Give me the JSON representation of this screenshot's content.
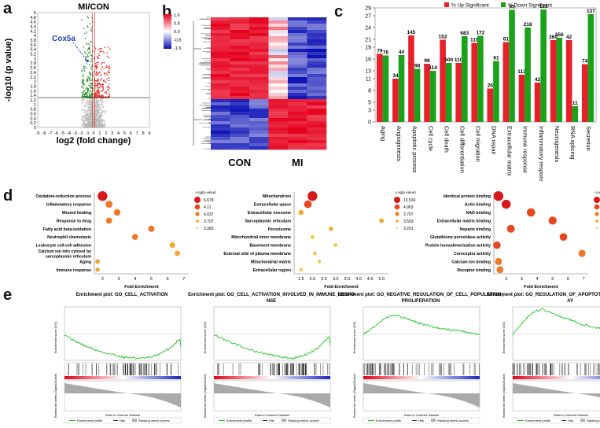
{
  "panel_labels": {
    "a": "a",
    "b": "b",
    "c": "c",
    "d": "d",
    "e": "e"
  },
  "chart_data": [
    {
      "id": "a",
      "type": "scatter",
      "title": "MI/CON",
      "xlabel": "log2 (fold change)",
      "ylabel": "-log10 (p value)",
      "x_ticks": [
        "-9",
        "-8",
        "-7",
        "-6",
        "-5",
        "-4",
        "-3",
        "-2",
        "-1",
        "0",
        "1",
        "2",
        "3",
        "4",
        "5",
        "6",
        "7",
        "8",
        "9"
      ],
      "x_tick_values": [
        -9,
        -8,
        -7,
        -6,
        -5,
        -4,
        -3,
        -2,
        -1,
        0,
        1,
        2,
        3,
        4,
        5,
        6,
        7,
        8,
        9
      ],
      "y_ticks": [
        "0",
        "0.2",
        "0.4",
        "0.6",
        "0.8",
        "1",
        "1.2",
        "1.4",
        "1.6",
        "1.8",
        "2",
        "2.2",
        "2.4",
        "2.6",
        "2.8",
        "3",
        "3.2",
        "3.4",
        "3.6",
        "3.8",
        "4",
        "4.2",
        "4.4",
        "4.6",
        "4.8",
        "5"
      ],
      "xlim": [
        -9,
        9
      ],
      "ylim": [
        0,
        5
      ],
      "threshold_y": 1.3,
      "annotation": "Cox5a",
      "annotation_point": {
        "x": -1.0,
        "y": 2.9
      },
      "colors": {
        "up": "#e02020",
        "down": "#1e8a1e",
        "ns": "#b8b8b8"
      }
    },
    {
      "id": "b",
      "type": "heatmap",
      "groups": [
        "CON",
        "MI"
      ],
      "legend_values": [
        "1.6",
        "0.8",
        "0.0",
        "-0.8",
        "-1.6"
      ],
      "colors": {
        "high": "#e8001c",
        "mid": "#ffffff",
        "low": "#0a10b4"
      }
    },
    {
      "id": "c",
      "type": "bar",
      "legend": [
        "% Up Significant",
        "% Down Significant"
      ],
      "categories": [
        "Aging",
        "Angiogenesis",
        "Apoptotic process",
        "Cell cycle",
        "Cell death",
        "Cell differentiation",
        "Cell migration",
        "DNA repair",
        "Extracellular matrix",
        "Immune response",
        "Inflammatory response",
        "Neurogenesis",
        "RNA splicing",
        "Secretion"
      ],
      "series": [
        {
          "name": "% Up Significant",
          "values": [
            17.3,
            11.0,
            22.0,
            14.8,
            20.9,
            15.0,
            20.1,
            8.5,
            20.3,
            12.0,
            10.0,
            20.8,
            20.8,
            14.7
          ],
          "labels": [
            "79",
            "34",
            "145",
            "98",
            "152",
            "110",
            "115",
            "26",
            "61",
            "113",
            "42",
            "260",
            "42",
            "74"
          ],
          "color": "#e8202a"
        },
        {
          "name": "% Down Significant",
          "values": [
            16.9,
            17.0,
            13.5,
            13.0,
            15.0,
            21.8,
            21.9,
            15.5,
            28.5,
            24.0,
            28.6,
            21.4,
            4.0,
            27.4
          ],
          "labels": [
            "76",
            "44",
            "98",
            "114",
            "500",
            "683",
            "172",
            "61",
            "93",
            "218",
            "121",
            "356",
            "11",
            "137"
          ],
          "color": "#1aa31a"
        }
      ],
      "y_ticks": [
        "0",
        "3",
        "5",
        "8",
        "11",
        "13",
        "16",
        "19",
        "21",
        "24",
        "27",
        "29"
      ],
      "ylim": [
        0,
        29
      ]
    },
    {
      "id": "d1",
      "type": "scatter",
      "xlabel": "Fold Enrichment",
      "legend_title": "-Log(p-value)",
      "legend_values": [
        "6.679",
        "4.11",
        "4.037",
        "3.707",
        "3.383"
      ],
      "categories": [
        "Oxidation-reduction process",
        "Inflammatory response",
        "Wound healing",
        "Response to drug",
        "Fatty acid beta-oxidation",
        "Neutrophil chemotaxis",
        "Leukocyte cell-cell adhesion",
        "Calcium ion into cytosol by sarcoplasmic reticulum",
        "Aging",
        "Immune response"
      ],
      "x": [
        2.0,
        2.4,
        2.9,
        2.4,
        5.0,
        4.0,
        6.3,
        6.6,
        1.7,
        1.7
      ],
      "size": [
        6.7,
        4.5,
        4.1,
        3.6,
        3.9,
        3.6,
        3.3,
        3.2,
        2.5,
        2.3
      ],
      "x_ticks": [
        "2",
        "3",
        "4",
        "5",
        "6",
        "7"
      ],
      "xlim": [
        1.5,
        7.3
      ]
    },
    {
      "id": "d2",
      "type": "scatter",
      "xlabel": "Fold Enrichment",
      "legend_title": "-Log(p-value)",
      "legend_values": [
        "13.534",
        "4.963",
        "3.707",
        "3.503",
        "3.201"
      ],
      "categories": [
        "Mitochondrion",
        "Extracellular space",
        "Extracellular exosome",
        "Sarcoplasmic reticulum",
        "Peroxisome",
        "Mitochondrial inner membrane",
        "Basement membrane",
        "External side of plasma membrane",
        "Mitochondrial matrix",
        "Extracellular region"
      ],
      "x": [
        2.0,
        1.8,
        1.5,
        5.0,
        2.8,
        2.0,
        3.0,
        2.1,
        2.3,
        1.5
      ],
      "size": [
        13.5,
        10.0,
        6.0,
        5.0,
        4.5,
        4.0,
        3.7,
        3.6,
        3.3,
        3.2
      ],
      "x_ticks": [
        "1.5",
        "2.0",
        "2.5",
        "3.0",
        "3.5",
        "4.0",
        "4.5",
        "5.0"
      ],
      "xlim": [
        1.2,
        5.3
      ]
    },
    {
      "id": "d3",
      "type": "scatter",
      "xlabel": "Fold Enrichment",
      "legend_title": "-Log(p-value)",
      "legend_values": [
        "3.463",
        "2.671",
        "2.442",
        "2.383",
        "2.32"
      ],
      "categories": [
        "Identical protein binding",
        "Actin binding",
        "NAD binding",
        "Extracellular matrix binding",
        "Heparin binding",
        "Glutathione peroxidase activity",
        "Protein homodimerization activity",
        "Coreceptor activity",
        "Calcium ion binding",
        "Receptor binding"
      ],
      "x": [
        1.5,
        2.0,
        3.6,
        5.0,
        2.3,
        5.7,
        1.4,
        6.9,
        1.5,
        1.6
      ],
      "size": [
        3.5,
        3.2,
        2.9,
        2.8,
        2.7,
        2.6,
        2.5,
        2.4,
        2.35,
        2.3
      ],
      "x_ticks": [
        "2",
        "3",
        "4",
        "5",
        "6",
        "7"
      ],
      "xlim": [
        1.2,
        7.3
      ]
    },
    {
      "id": "e1",
      "type": "line",
      "title": "Enrichment plot: GO_CELL_ACTIVATION",
      "ylabel": "Enrichment score (ES)",
      "xlabel": "Rank in Ordered Dataset",
      "x": [
        0,
        1000,
        2000,
        3000,
        4000,
        5000,
        6000,
        7000,
        8000,
        9000,
        10000,
        11000,
        12000
      ],
      "y": [
        0.0,
        -0.1,
        -0.17,
        -0.23,
        -0.28,
        -0.31,
        -0.35,
        -0.36,
        -0.37,
        -0.35,
        -0.29,
        -0.2,
        -0.05
      ],
      "legend": [
        "Enrichment profile",
        "Hits",
        "Ranking metric scores"
      ]
    },
    {
      "id": "e2",
      "type": "line",
      "title": "Enrichment plot: GO_CELL_ACTIVATION_INVOLVED_IN_IMMUNE_RESPO NSE",
      "ylabel": "Enrichment score (ES)",
      "xlabel": "Rank in Ordered Dataset",
      "x": [
        0,
        1000,
        2000,
        3000,
        4000,
        5000,
        6000,
        7000,
        8000,
        9000,
        10000,
        11000,
        12000
      ],
      "y": [
        0.0,
        -0.08,
        -0.14,
        -0.2,
        -0.25,
        -0.29,
        -0.32,
        -0.35,
        -0.37,
        -0.34,
        -0.28,
        -0.18,
        -0.02
      ],
      "legend": [
        "Enrichment profile",
        "Hits",
        "Ranking metric scores"
      ]
    },
    {
      "id": "e3",
      "type": "line",
      "title": "Enrichment plot: GO_NEGATIVE_REGULATION_OF_CELL_POPULATION_ PROLIFERATION",
      "ylabel": "Enrichment score (ES)",
      "xlabel": "Rank in Ordered Dataset",
      "x": [
        0,
        1000,
        2000,
        3000,
        4000,
        5000,
        6000,
        7000,
        8000,
        9000,
        10000,
        11000,
        12000
      ],
      "y": [
        0.0,
        0.1,
        0.22,
        0.3,
        0.26,
        0.21,
        0.16,
        0.12,
        0.09,
        0.06,
        0.05,
        0.02,
        0.0
      ],
      "legend": [
        "Enrichment profile",
        "Hits",
        "Ranking metric scores"
      ]
    },
    {
      "id": "e4",
      "type": "line",
      "title": "Enrichment plot: GO_REGULATION_OF_APOPTOTIC_SIGNALING_PATHW AY",
      "ylabel": "Enrichment score (ES)",
      "xlabel": "Rank in Ordered Dataset",
      "x": [
        0,
        1000,
        2000,
        3000,
        4000,
        5000,
        6000,
        7000,
        8000,
        9000,
        10000,
        11000,
        12000
      ],
      "y": [
        0.0,
        0.18,
        0.34,
        0.38,
        0.33,
        0.27,
        0.22,
        0.16,
        0.12,
        0.09,
        0.06,
        0.03,
        0.0
      ],
      "legend": [
        "Enrichment profile",
        "Hits",
        "Ranking metric scores"
      ]
    }
  ]
}
